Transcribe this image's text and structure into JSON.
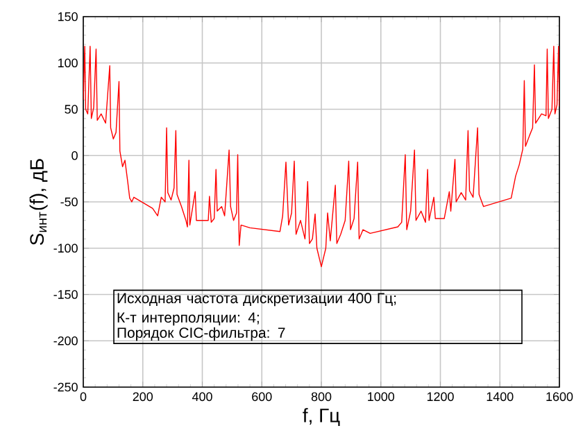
{
  "chart_data": {
    "type": "line",
    "xlabel": "f, Гц",
    "ylabel": "S$_{инт}$(f), дБ",
    "annotations": [
      "Исходная частота дискретизации 400 Гц;",
      "К-т интерполяции: 4;",
      "Порядок CIC-фильтра: 7"
    ],
    "xlim": [
      0,
      1600
    ],
    "ylim": [
      -250,
      150
    ],
    "xticks": [
      0,
      200,
      400,
      600,
      800,
      1000,
      1200,
      1400,
      1600
    ],
    "yticks": [
      -250,
      -200,
      -150,
      -100,
      -50,
      0,
      50,
      100,
      150
    ],
    "grid": true,
    "marker": "none",
    "line_style": "solid",
    "series": [
      {
        "color": "#ff0000",
        "x": [
          0,
          5,
          8,
          15,
          23,
          27,
          35,
          43,
          47,
          60,
          75,
          89,
          92,
          101,
          110,
          120,
          123,
          132,
          140,
          150,
          156,
          163,
          170,
          233,
          250,
          262,
          275,
          280,
          284,
          295,
          305,
          311,
          315,
          330,
          345,
          350,
          355,
          358,
          376,
          380,
          420,
          424,
          430,
          440,
          446,
          450,
          465,
          475,
          490,
          495,
          505,
          515,
          519,
          524,
          530,
          560,
          661,
          670,
          681,
          690,
          700,
          709,
          715,
          730,
          745,
          754,
          760,
          770,
          779,
          785,
          800,
          815,
          821,
          830,
          847,
          852,
          865,
          880,
          892,
          898,
          910,
          922,
          927,
          940,
          964,
          1057,
          1070,
          1082,
          1087,
          1100,
          1113,
          1118,
          1135,
          1150,
          1157,
          1162,
          1178,
          1183,
          1213,
          1230,
          1235,
          1249,
          1253,
          1270,
          1285,
          1293,
          1298,
          1310,
          1325,
          1330,
          1345,
          1438,
          1453,
          1465,
          1477,
          1482,
          1486,
          1500,
          1510,
          1516,
          1520,
          1540,
          1555,
          1559,
          1563,
          1575,
          1581,
          1585,
          1592,
          1597,
          1600
        ],
        "values": [
          60,
          118,
          50,
          45,
          118,
          40,
          52,
          115,
          38,
          45,
          35,
          97,
          30,
          18,
          25,
          80,
          5,
          -12,
          -5,
          -30,
          -46,
          -50,
          -45,
          -57,
          -65,
          -45,
          -50,
          30,
          -40,
          -48,
          -35,
          27,
          -42,
          -55,
          -70,
          -77,
          -5,
          -75,
          -39,
          -70,
          -70,
          -44,
          -72,
          -68,
          -15,
          -60,
          -55,
          -65,
          6,
          -55,
          -70,
          -62,
          1,
          -97,
          -75,
          -78,
          -82,
          -65,
          -7,
          -75,
          -62,
          -6,
          -85,
          -70,
          -90,
          -28,
          -95,
          -90,
          -63,
          -100,
          -120,
          -100,
          -62,
          -92,
          -32,
          -95,
          -85,
          -70,
          -6,
          -80,
          -68,
          -7,
          -90,
          -80,
          -84,
          -77,
          -72,
          1,
          -80,
          -60,
          6,
          -70,
          -60,
          -72,
          -15,
          -70,
          -45,
          -68,
          -68,
          -39,
          -60,
          -4,
          -50,
          -40,
          -48,
          27,
          -38,
          -45,
          30,
          -42,
          -55,
          -46,
          -22,
          -10,
          7,
          81,
          10,
          22,
          30,
          98,
          35,
          45,
          43,
          115,
          40,
          50,
          118,
          45,
          55,
          118,
          53
        ]
      }
    ]
  }
}
